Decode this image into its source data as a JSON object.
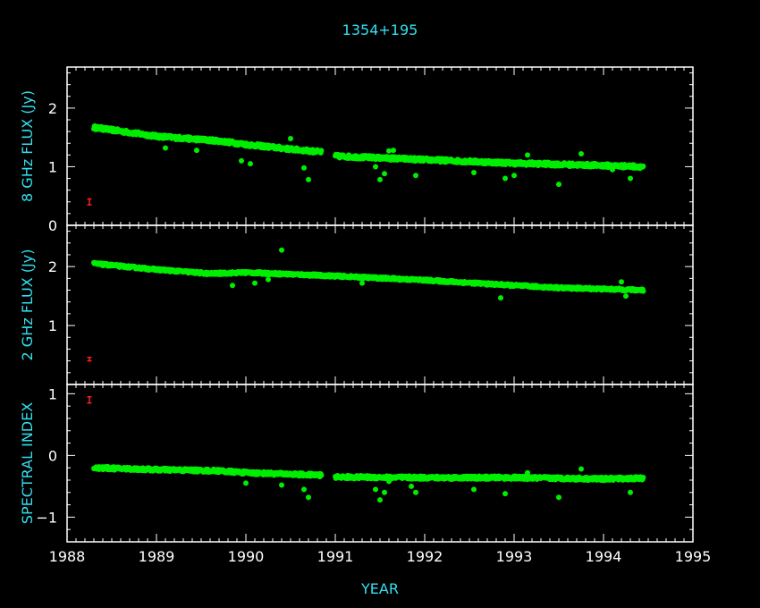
{
  "colors": {
    "background": "#000000",
    "axes": "#ffffff",
    "labels": "#33e0f0",
    "data": "#00ee00",
    "error_bar": "#ff2020"
  },
  "chart_data": [
    {
      "type": "scatter",
      "title": "1354+195",
      "ylabel": "8 GHz FLUX (Jy)",
      "xlim": [
        1988,
        1995
      ],
      "ylim": [
        0,
        2.7
      ],
      "y_ticks": [
        "0",
        "1",
        "2"
      ],
      "error_bar": {
        "x": 1988.25,
        "y": 0.4,
        "half_height": 0.05
      },
      "trend": [
        [
          1988.3,
          1.67
        ],
        [
          1989.0,
          1.52
        ],
        [
          1989.7,
          1.44
        ],
        [
          1990.0,
          1.38
        ],
        [
          1990.5,
          1.3
        ],
        [
          1990.85,
          1.25
        ],
        [
          1991.0,
          1.18
        ],
        [
          1992.0,
          1.12
        ],
        [
          1993.0,
          1.06
        ],
        [
          1994.0,
          1.02
        ],
        [
          1994.45,
          1.0
        ]
      ],
      "gap": [
        1990.85,
        1991.0
      ],
      "scatter": 0.03,
      "outliers": [
        [
          1989.1,
          1.32
        ],
        [
          1989.45,
          1.28
        ],
        [
          1989.95,
          1.1
        ],
        [
          1990.05,
          1.05
        ],
        [
          1990.5,
          1.48
        ],
        [
          1990.65,
          0.98
        ],
        [
          1990.7,
          0.78
        ],
        [
          1991.45,
          1.0
        ],
        [
          1991.5,
          0.78
        ],
        [
          1991.55,
          0.88
        ],
        [
          1991.6,
          1.27
        ],
        [
          1991.65,
          1.28
        ],
        [
          1991.9,
          0.85
        ],
        [
          1992.55,
          0.9
        ],
        [
          1992.9,
          0.8
        ],
        [
          1993.0,
          0.85
        ],
        [
          1993.15,
          1.2
        ],
        [
          1993.5,
          0.7
        ],
        [
          1993.75,
          1.22
        ],
        [
          1994.1,
          0.95
        ],
        [
          1994.3,
          0.8
        ]
      ]
    },
    {
      "type": "scatter",
      "ylabel": "2 GHz FLUX (Jy)",
      "xlim": [
        1988,
        1995
      ],
      "ylim": [
        0,
        2.7
      ],
      "y_ticks": [
        "1",
        "2"
      ],
      "error_bar": {
        "x": 1988.25,
        "y": 0.43,
        "half_height": 0.03
      },
      "trend": [
        [
          1988.3,
          2.05
        ],
        [
          1989.0,
          1.95
        ],
        [
          1989.6,
          1.88
        ],
        [
          1990.0,
          1.9
        ],
        [
          1990.5,
          1.87
        ],
        [
          1991.0,
          1.84
        ],
        [
          1992.0,
          1.77
        ],
        [
          1993.0,
          1.68
        ],
        [
          1993.5,
          1.64
        ],
        [
          1994.0,
          1.62
        ],
        [
          1994.45,
          1.6
        ]
      ],
      "gap": null,
      "scatter": 0.02,
      "outliers": [
        [
          1989.85,
          1.68
        ],
        [
          1990.1,
          1.72
        ],
        [
          1990.4,
          2.28
        ],
        [
          1990.25,
          1.78
        ],
        [
          1991.3,
          1.72
        ],
        [
          1992.85,
          1.47
        ],
        [
          1994.2,
          1.74
        ],
        [
          1994.25,
          1.5
        ]
      ]
    },
    {
      "type": "scatter",
      "ylabel": "SPECTRAL INDEX",
      "xlabel": "YEAR",
      "xlim": [
        1988,
        1995
      ],
      "ylim": [
        -1.4,
        1.15
      ],
      "y_ticks": [
        "−1",
        "0",
        "1"
      ],
      "x_ticks": [
        "1988",
        "1989",
        "1990",
        "1991",
        "1992",
        "1993",
        "1994",
        "1995"
      ],
      "error_bar": {
        "x": 1988.25,
        "y": 0.9,
        "half_height": 0.05
      },
      "trend": [
        [
          1988.3,
          -0.2
        ],
        [
          1989.0,
          -0.23
        ],
        [
          1989.7,
          -0.25
        ],
        [
          1990.0,
          -0.28
        ],
        [
          1990.85,
          -0.32
        ],
        [
          1991.0,
          -0.35
        ],
        [
          1992.0,
          -0.36
        ],
        [
          1993.0,
          -0.36
        ],
        [
          1994.0,
          -0.38
        ],
        [
          1994.45,
          -0.37
        ]
      ],
      "gap": [
        1990.85,
        1991.0
      ],
      "scatter": 0.025,
      "outliers": [
        [
          1990.0,
          -0.45
        ],
        [
          1990.4,
          -0.48
        ],
        [
          1990.65,
          -0.55
        ],
        [
          1990.7,
          -0.68
        ],
        [
          1991.45,
          -0.55
        ],
        [
          1991.5,
          -0.72
        ],
        [
          1991.55,
          -0.6
        ],
        [
          1991.6,
          -0.42
        ],
        [
          1991.85,
          -0.5
        ],
        [
          1991.9,
          -0.6
        ],
        [
          1992.55,
          -0.55
        ],
        [
          1992.9,
          -0.62
        ],
        [
          1993.15,
          -0.28
        ],
        [
          1993.5,
          -0.68
        ],
        [
          1993.75,
          -0.22
        ],
        [
          1994.3,
          -0.6
        ]
      ]
    }
  ]
}
